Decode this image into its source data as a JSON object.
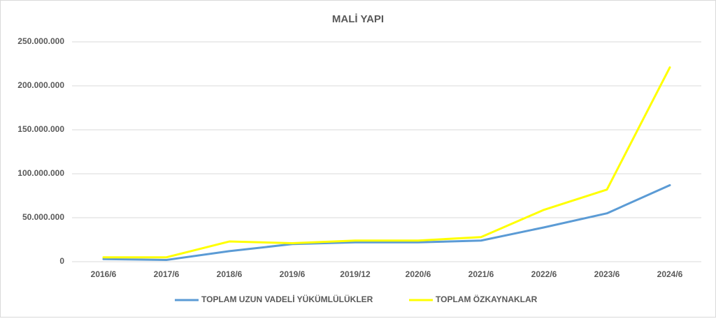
{
  "chart_data": {
    "type": "line",
    "title": "MALİ YAPI",
    "categories": [
      "2016/6",
      "2017/6",
      "2018/6",
      "2019/6",
      "2019/12",
      "2020/6",
      "2021/6",
      "2022/6",
      "2023/6",
      "2024/6"
    ],
    "series": [
      {
        "name": "TOPLAM UZUN VADELİ YÜKÜMLÜLÜKLER",
        "color": "#5b9bd5",
        "values": [
          3000000,
          2000000,
          12000000,
          20000000,
          22000000,
          22000000,
          24000000,
          39000000,
          55000000,
          87000000
        ]
      },
      {
        "name": "TOPLAM ÖZKAYNAKLAR",
        "color": "#ffff00",
        "values": [
          5000000,
          5000000,
          23000000,
          21000000,
          24000000,
          24000000,
          28000000,
          59000000,
          82000000,
          221000000
        ]
      }
    ],
    "ylim": [
      0,
      250000000
    ],
    "yticks": [
      0,
      {
        "value": 50000000,
        "label": "50.000.000"
      },
      {
        "value": 100000000,
        "label": "100.000.000"
      },
      {
        "value": 150000000,
        "label": "150.000.000"
      },
      {
        "value": 200000000,
        "label": "200.000.000"
      },
      {
        "value": 250000000,
        "label": "250.000.000"
      }
    ],
    "grid": true
  }
}
